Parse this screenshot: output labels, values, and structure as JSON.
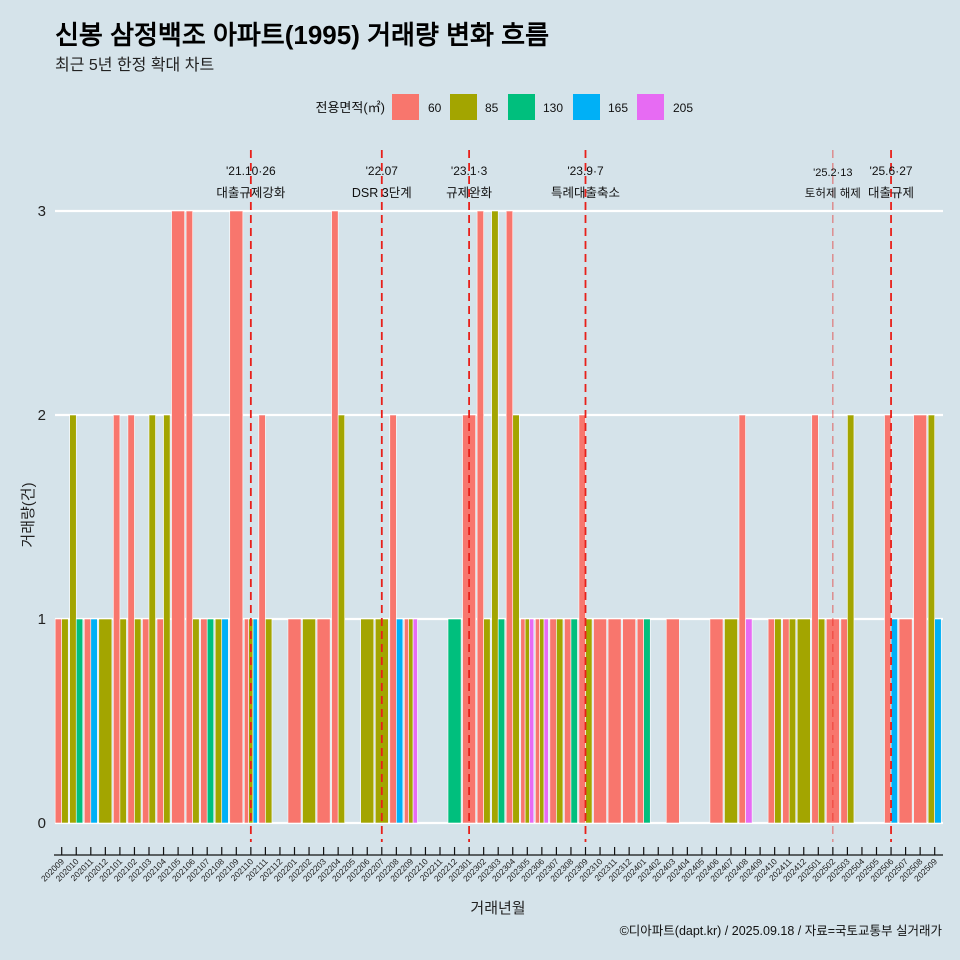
{
  "chart_data": {
    "type": "bar",
    "title": "신봉 삼정백조 아파트(1995) 거래량 변화 흐름",
    "subtitle": "최근 5년 한정 확대 차트",
    "xlabel": "거래년월",
    "ylabel": "거래량(건)",
    "ylim": [
      0,
      3
    ],
    "yticks": [
      0,
      1,
      2,
      3
    ],
    "grid": "horizontal",
    "barmode": "dodge",
    "legend": {
      "title": "전용면적(㎡)",
      "position": "top",
      "entries": [
        {
          "label": "60",
          "color": "#F8766D"
        },
        {
          "label": "85",
          "color": "#A3A500"
        },
        {
          "label": "130",
          "color": "#00BF7D"
        },
        {
          "label": "165",
          "color": "#00B0F6"
        },
        {
          "label": "205",
          "color": "#E76BF3"
        }
      ]
    },
    "categories": [
      "202009",
      "202010",
      "202011",
      "202012",
      "202101",
      "202102",
      "202103",
      "202104",
      "202105",
      "202106",
      "202107",
      "202108",
      "202109",
      "202110",
      "202111",
      "202112",
      "202201",
      "202202",
      "202203",
      "202204",
      "202205",
      "202206",
      "202207",
      "202208",
      "202209",
      "202210",
      "202211",
      "202212",
      "202301",
      "202302",
      "202303",
      "202304",
      "202305",
      "202306",
      "202307",
      "202308",
      "202309",
      "202310",
      "202311",
      "202312",
      "202401",
      "202402",
      "202403",
      "202404",
      "202405",
      "202406",
      "202407",
      "202408",
      "202409",
      "202410",
      "202411",
      "202412",
      "202501",
      "202502",
      "202503",
      "202504",
      "202505",
      "202506",
      "202507",
      "202508",
      "202509"
    ],
    "series": [
      {
        "name": "60",
        "color": "#F8766D",
        "values": [
          1,
          0,
          1,
          0,
          2,
          2,
          1,
          1,
          3,
          3,
          1,
          0,
          3,
          1,
          2,
          0,
          1,
          0,
          1,
          3,
          0,
          0,
          0,
          2,
          1,
          0,
          0,
          0,
          2,
          3,
          0,
          3,
          1,
          1,
          1,
          1,
          2,
          1,
          1,
          1,
          1,
          0,
          1,
          0,
          0,
          1,
          0,
          2,
          0,
          1,
          1,
          0,
          2,
          1,
          1,
          0,
          0,
          2,
          1,
          2,
          0
        ]
      },
      {
        "name": "85",
        "color": "#A3A500",
        "values": [
          1,
          2,
          0,
          1,
          1,
          1,
          2,
          2,
          0,
          1,
          0,
          1,
          0,
          1,
          1,
          0,
          0,
          1,
          0,
          2,
          0,
          1,
          1,
          0,
          1,
          0,
          0,
          0,
          0,
          1,
          3,
          2,
          1,
          1,
          1,
          0,
          1,
          0,
          0,
          0,
          0,
          0,
          0,
          0,
          0,
          0,
          1,
          0,
          0,
          1,
          1,
          1,
          1,
          0,
          2,
          0,
          0,
          0,
          0,
          0,
          2
        ]
      },
      {
        "name": "130",
        "color": "#00BF7D",
        "values": [
          0,
          1,
          0,
          0,
          0,
          0,
          0,
          0,
          0,
          0,
          1,
          0,
          0,
          0,
          0,
          0,
          0,
          0,
          0,
          0,
          0,
          0,
          0,
          0,
          0,
          0,
          0,
          1,
          0,
          0,
          1,
          0,
          0,
          0,
          0,
          1,
          0,
          0,
          0,
          0,
          1,
          0,
          0,
          0,
          0,
          0,
          0,
          0,
          0,
          0,
          0,
          0,
          0,
          0,
          0,
          0,
          0,
          0,
          0,
          0,
          0
        ]
      },
      {
        "name": "165",
        "color": "#00B0F6",
        "values": [
          0,
          0,
          1,
          0,
          0,
          0,
          0,
          0,
          0,
          0,
          0,
          1,
          0,
          1,
          0,
          0,
          0,
          0,
          0,
          0,
          0,
          0,
          0,
          1,
          0,
          0,
          0,
          0,
          0,
          0,
          0,
          0,
          0,
          0,
          0,
          0,
          0,
          0,
          0,
          0,
          0,
          0,
          0,
          0,
          0,
          0,
          0,
          0,
          0,
          0,
          0,
          0,
          0,
          0,
          0,
          0,
          0,
          1,
          0,
          0,
          1
        ]
      },
      {
        "name": "205",
        "color": "#E76BF3",
        "values": [
          0,
          0,
          0,
          0,
          0,
          0,
          0,
          0,
          0,
          0,
          0,
          0,
          0,
          0,
          0,
          0,
          0,
          0,
          0,
          0,
          0,
          0,
          0,
          0,
          1,
          0,
          0,
          0,
          0,
          0,
          0,
          0,
          1,
          1,
          0,
          0,
          0,
          0,
          0,
          0,
          0,
          0,
          0,
          0,
          0,
          0,
          0,
          1,
          0,
          0,
          0,
          0,
          0,
          0,
          0,
          0,
          0,
          0,
          0,
          0,
          0
        ]
      }
    ],
    "events": [
      {
        "month": "202110",
        "date": "'21.10·26",
        "label": "대출규제강화",
        "minor": false
      },
      {
        "month": "202207",
        "date": "'22.07",
        "label": "DSR 3단계",
        "minor": false
      },
      {
        "month": "202301",
        "date": "'23.1·3",
        "label": "규제완화",
        "minor": false
      },
      {
        "month": "202309",
        "date": "'23.9·7",
        "label": "특례대출축소",
        "minor": false
      },
      {
        "month": "202502",
        "date": "'25.2·13",
        "label": "토허제 해제",
        "minor": true
      },
      {
        "month": "202506",
        "date": "'25.6·27",
        "label": "대출규제",
        "minor": false
      }
    ],
    "event_line_color": "#E8201A",
    "footer": "©디아파트(dapt.kr) / 2025.09.18 / 자료=국토교통부 실거래가"
  }
}
